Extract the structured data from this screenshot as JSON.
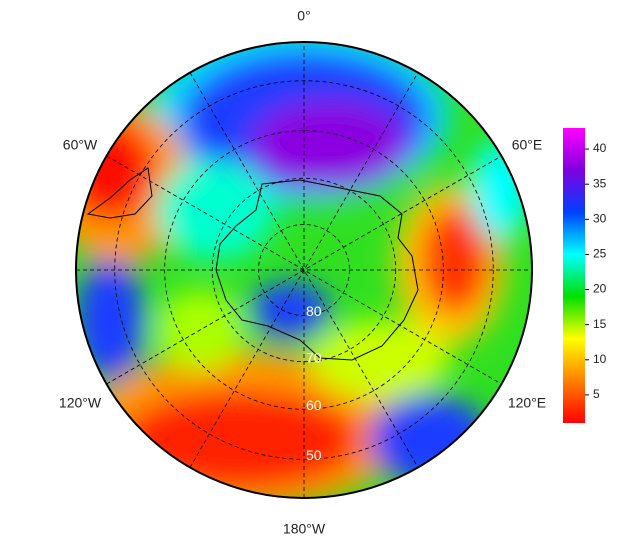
{
  "map": {
    "meridian_labels": [
      "0°",
      "60°E",
      "120°E",
      "180°W",
      "120°W",
      "60°W"
    ],
    "latitude_labels": [
      80,
      70,
      60,
      50
    ],
    "colorbar": {
      "range": [
        1,
        43
      ],
      "ticks": [
        5,
        10,
        15,
        20,
        25,
        30,
        35,
        40
      ],
      "colors": [
        "#ff0000",
        "#ff8000",
        "#ffff00",
        "#00e000",
        "#00ffff",
        "#0040ff",
        "#8000e0",
        "#ff00ff"
      ]
    }
  }
}
